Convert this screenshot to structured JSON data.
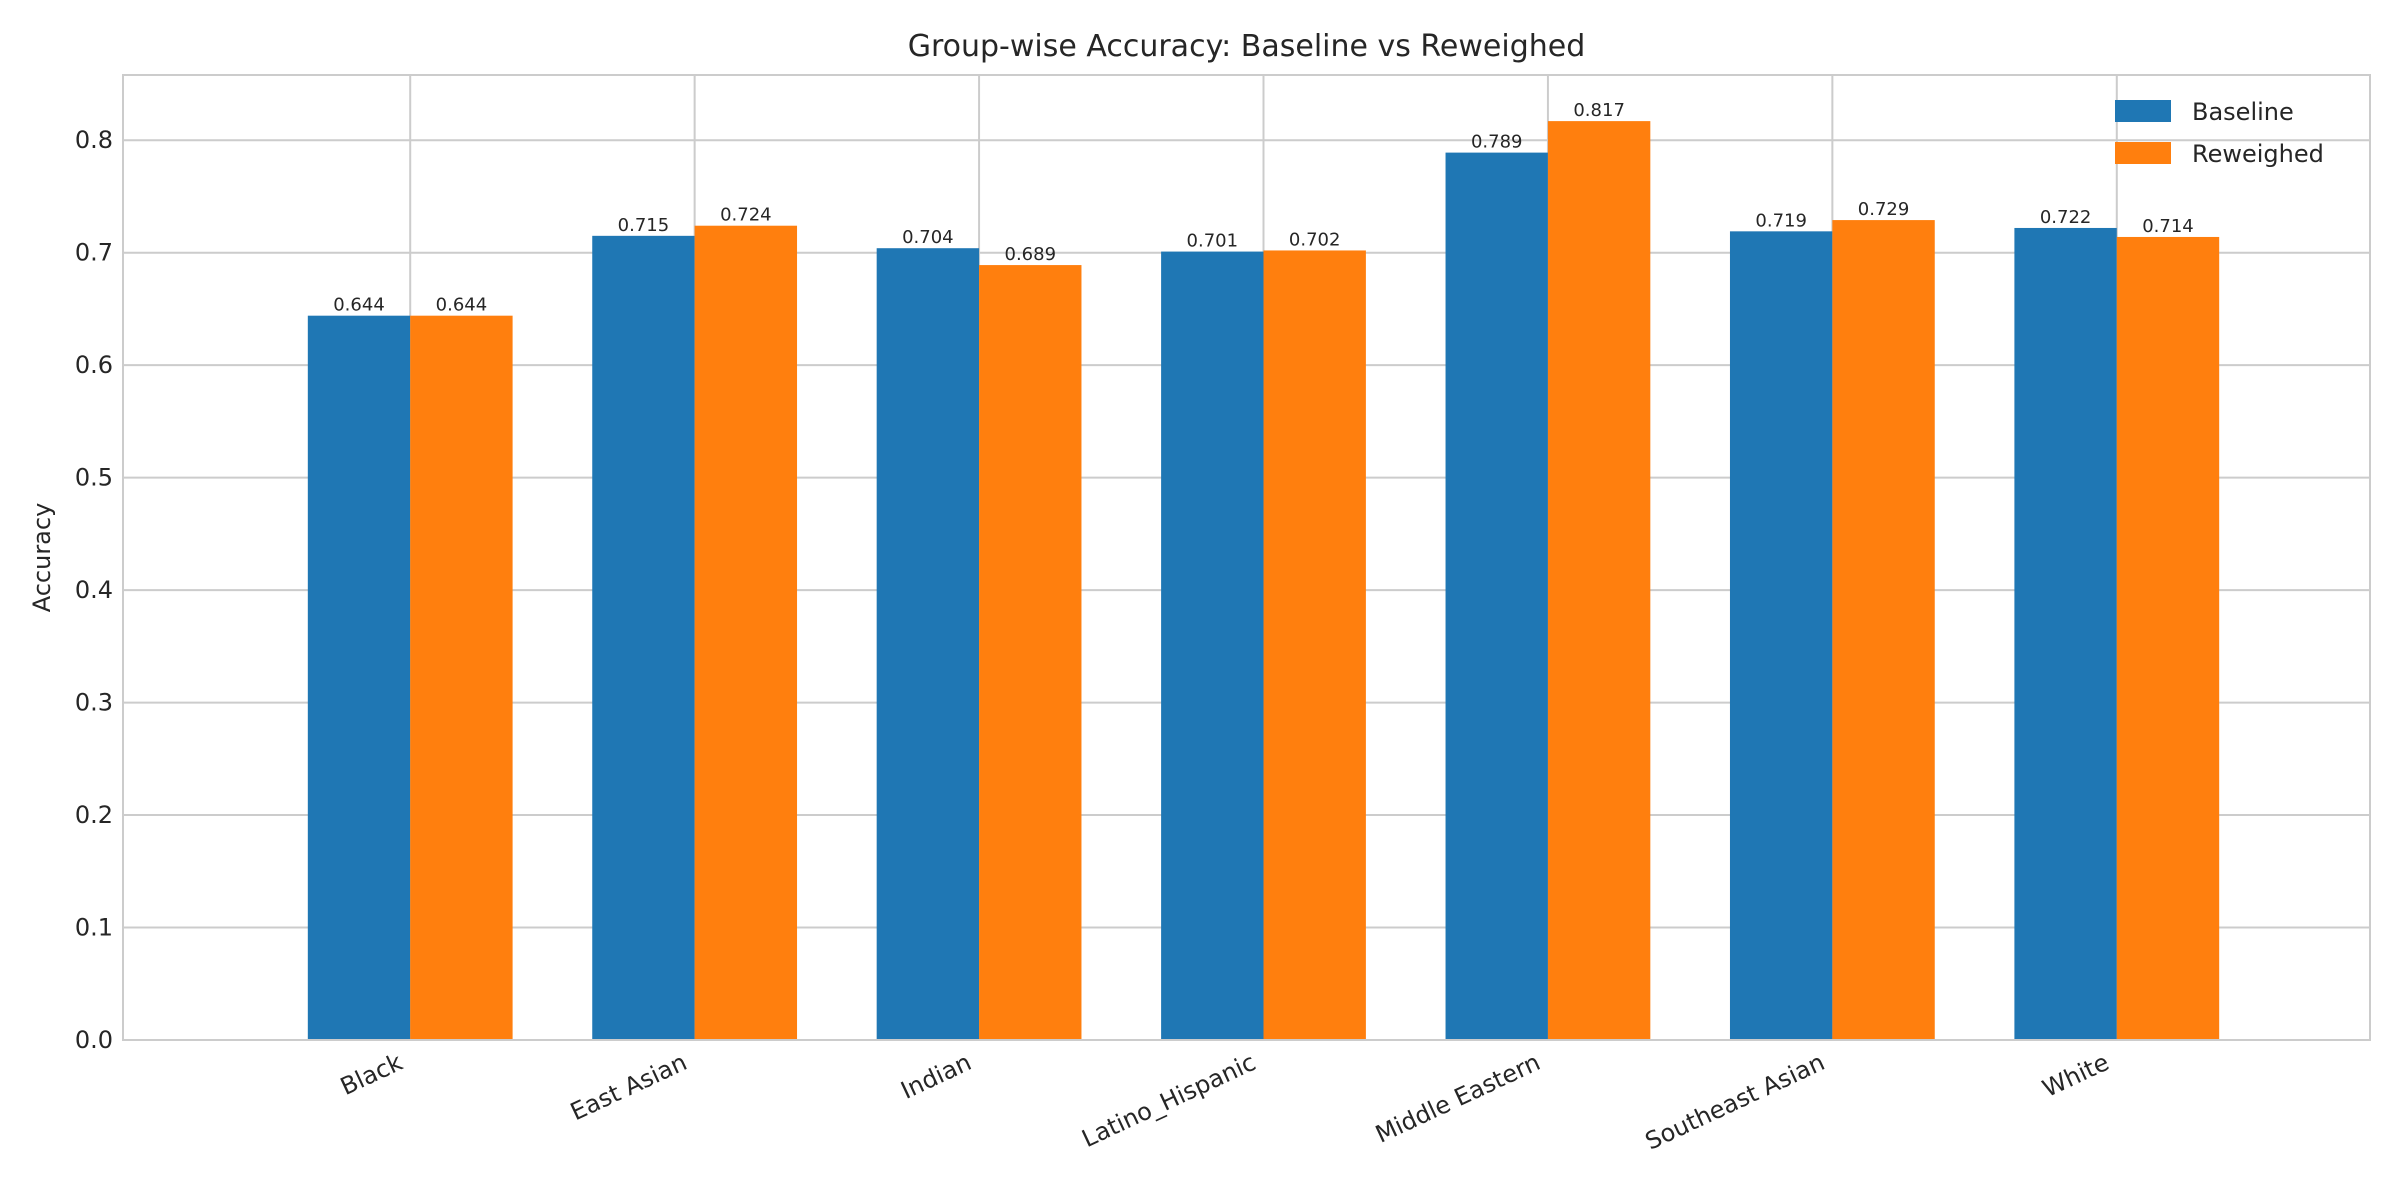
{
  "chart_data": {
    "type": "bar",
    "title": "Group-wise Accuracy: Baseline vs Reweighed",
    "xlabel": "",
    "ylabel": "Accuracy",
    "categories": [
      "Black",
      "East Asian",
      "Indian",
      "Latino_Hispanic",
      "Middle Eastern",
      "Southeast Asian",
      "White"
    ],
    "series": [
      {
        "name": "Baseline",
        "color": "#1f77b4",
        "values": [
          0.644,
          0.715,
          0.704,
          0.701,
          0.789,
          0.719,
          0.722
        ]
      },
      {
        "name": "Reweighed",
        "color": "#ff7f0e",
        "values": [
          0.644,
          0.724,
          0.689,
          0.702,
          0.817,
          0.729,
          0.714
        ]
      }
    ],
    "ylim": [
      0,
      0.858
    ],
    "yticks": [
      "0.0",
      "0.1",
      "0.2",
      "0.3",
      "0.4",
      "0.5",
      "0.6",
      "0.7",
      "0.8"
    ],
    "grid": true,
    "legend_position": "top-right"
  }
}
